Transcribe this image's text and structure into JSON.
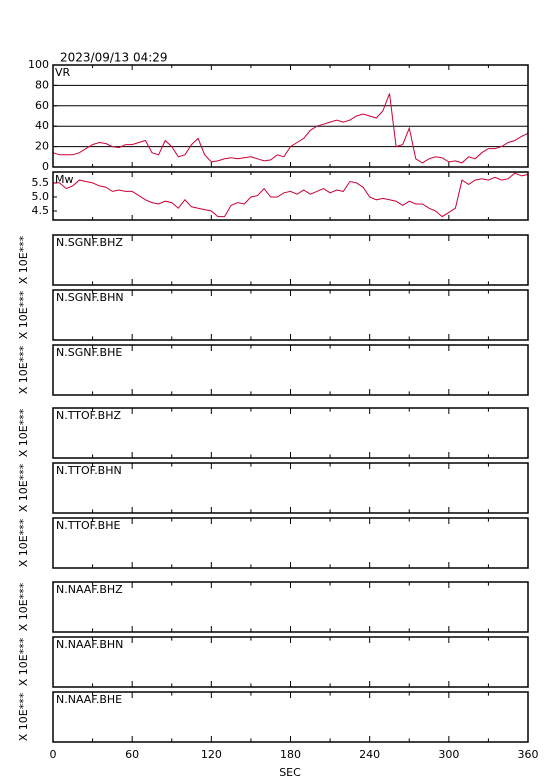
{
  "title": "2023/09/13 04:29",
  "chart_data": [
    {
      "type": "line",
      "label": "VR",
      "color": "#cc0033",
      "xlim": [
        0,
        360
      ],
      "ylim": [
        0,
        100
      ],
      "yticks": [
        0,
        20,
        40,
        60,
        80,
        100
      ],
      "grid": true,
      "x": [
        0,
        5,
        10,
        15,
        20,
        25,
        30,
        35,
        40,
        45,
        50,
        55,
        60,
        65,
        70,
        75,
        80,
        85,
        90,
        95,
        100,
        105,
        110,
        115,
        120,
        125,
        130,
        135,
        140,
        145,
        150,
        155,
        160,
        165,
        170,
        175,
        180,
        185,
        190,
        195,
        200,
        205,
        210,
        215,
        220,
        225,
        230,
        235,
        240,
        245,
        250,
        255,
        260,
        265,
        270,
        275,
        280,
        285,
        290,
        295,
        300,
        305,
        310,
        315,
        320,
        325,
        330,
        335,
        340,
        345,
        350,
        355,
        360
      ],
      "values": [
        14,
        12,
        12,
        12,
        14,
        18,
        22,
        24,
        23,
        20,
        19,
        22,
        22,
        24,
        26,
        14,
        12,
        26,
        20,
        10,
        12,
        22,
        28,
        12,
        5,
        6,
        8,
        9,
        8,
        9,
        10,
        8,
        6,
        7,
        12,
        10,
        20,
        24,
        28,
        36,
        40,
        42,
        44,
        46,
        44,
        46,
        50,
        52,
        50,
        48,
        55,
        72,
        20,
        22,
        38,
        8,
        4,
        8,
        10,
        9,
        5,
        6,
        4,
        10,
        8,
        14,
        18,
        18,
        20,
        24,
        26,
        30,
        33
      ]
    },
    {
      "type": "line",
      "label": "Mw",
      "color": "#cc0033",
      "xlim": [
        0,
        360
      ],
      "ylim": [
        4.18,
        5.89
      ],
      "yticks": [
        4.5,
        {
          "value": 5,
          "label": "5.0"
        },
        5.5
      ],
      "grid": false,
      "x": [
        0,
        5,
        10,
        15,
        20,
        25,
        30,
        35,
        40,
        45,
        50,
        55,
        60,
        65,
        70,
        75,
        80,
        85,
        90,
        95,
        100,
        105,
        110,
        115,
        120,
        125,
        130,
        135,
        140,
        145,
        150,
        155,
        160,
        165,
        170,
        175,
        180,
        185,
        190,
        195,
        200,
        205,
        210,
        215,
        220,
        225,
        230,
        235,
        240,
        245,
        250,
        255,
        260,
        265,
        270,
        275,
        280,
        285,
        290,
        295,
        300,
        305,
        310,
        315,
        320,
        325,
        330,
        335,
        340,
        345,
        350,
        355,
        360
      ],
      "values": [
        5.5,
        5.5,
        5.3,
        5.4,
        5.6,
        5.55,
        5.5,
        5.4,
        5.35,
        5.2,
        5.25,
        5.2,
        5.2,
        5.05,
        4.9,
        4.8,
        4.75,
        4.85,
        4.8,
        4.6,
        4.9,
        4.65,
        4.6,
        4.55,
        4.5,
        4.3,
        4.3,
        4.7,
        4.8,
        4.75,
        5.0,
        5.05,
        5.3,
        5.0,
        5.0,
        5.15,
        5.2,
        5.1,
        5.25,
        5.1,
        5.2,
        5.3,
        5.15,
        5.25,
        5.2,
        5.55,
        5.5,
        5.35,
        5.0,
        4.9,
        4.95,
        4.9,
        4.85,
        4.7,
        4.85,
        4.75,
        4.75,
        4.6,
        4.5,
        4.3,
        4.45,
        4.6,
        5.6,
        5.45,
        5.6,
        5.65,
        5.6,
        5.7,
        5.6,
        5.65,
        5.85,
        5.75,
        5.8
      ]
    }
  ],
  "traces": [
    {
      "label": "N.SGNF.BHZ",
      "scale": "X 10E***"
    },
    {
      "label": "N.SGNF.BHN",
      "scale": "X 10E***"
    },
    {
      "label": "N.SGNF.BHE",
      "scale": "X 10E***"
    },
    {
      "label": "N.TTOF.BHZ",
      "scale": "X 10E***"
    },
    {
      "label": "N.TTOF.BHN",
      "scale": "X 10E***"
    },
    {
      "label": "N.TTOF.BHE",
      "scale": "X 10E***"
    },
    {
      "label": "N.NAAF.BHZ",
      "scale": "X 10E***"
    },
    {
      "label": "N.NAAF.BHN",
      "scale": "X 10E***"
    },
    {
      "label": "N.NAAF.BHE",
      "scale": "X 10E***"
    }
  ],
  "x_axis": {
    "label": "SEC",
    "xlim": [
      0,
      360
    ],
    "xticks": [
      0,
      60,
      120,
      180,
      240,
      300,
      360
    ],
    "minor_xticks": [
      30,
      90,
      150,
      210,
      270,
      330
    ]
  }
}
